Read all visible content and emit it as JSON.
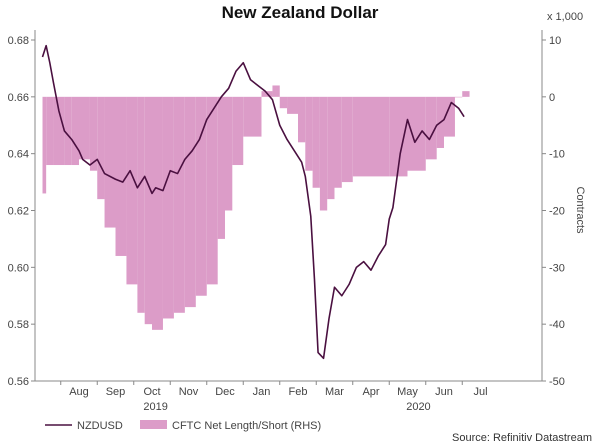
{
  "chart_data": {
    "type": "line",
    "title": "New Zealand Dollar",
    "source": "Source: Refinitiv Datastream",
    "months": [
      "Aug",
      "Sep",
      "Oct",
      "Nov",
      "Dec",
      "Jan",
      "Feb",
      "Mar",
      "Apr",
      "May",
      "Jun",
      "Jul"
    ],
    "years": [
      "2019",
      "2020"
    ],
    "left_axis": {
      "ylim": [
        0.56,
        0.68
      ],
      "ticks": [
        "0.68",
        "0.66",
        "0.64",
        "0.62",
        "0.60",
        "0.58",
        "0.56"
      ]
    },
    "right_axis": {
      "label": "Contracts",
      "multiplier": "x 1,000",
      "ylim": [
        -50,
        10
      ],
      "ticks": [
        "10",
        "0",
        "-10",
        "-20",
        "-30",
        "-40",
        "-50"
      ]
    },
    "series": [
      {
        "name": "NZDUSD",
        "type": "line",
        "color": "#4a1040",
        "x": [
          0,
          0.1,
          0.2,
          0.3,
          0.45,
          0.6,
          0.8,
          1,
          1.1,
          1.3,
          1.5,
          1.7,
          2,
          2.2,
          2.4,
          2.6,
          2.8,
          3,
          3.1,
          3.3,
          3.5,
          3.7,
          3.9,
          4.1,
          4.3,
          4.5,
          4.7,
          4.9,
          5.1,
          5.3,
          5.5,
          5.7,
          5.9,
          6.1,
          6.3,
          6.5,
          6.7,
          6.9,
          7.1,
          7.2,
          7.35,
          7.45,
          7.55,
          7.7,
          7.85,
          8,
          8.2,
          8.4,
          8.6,
          8.8,
          9,
          9.2,
          9.4,
          9.5,
          9.6,
          9.8,
          10,
          10.2,
          10.4,
          10.6,
          10.8,
          11,
          11.2,
          11.4,
          11.55
        ],
        "values": [
          0.674,
          0.678,
          0.672,
          0.665,
          0.655,
          0.648,
          0.645,
          0.641,
          0.638,
          0.636,
          0.638,
          0.633,
          0.631,
          0.63,
          0.634,
          0.628,
          0.632,
          0.626,
          0.628,
          0.627,
          0.634,
          0.633,
          0.638,
          0.641,
          0.645,
          0.652,
          0.656,
          0.66,
          0.663,
          0.669,
          0.672,
          0.666,
          0.664,
          0.662,
          0.659,
          0.65,
          0.645,
          0.641,
          0.637,
          0.632,
          0.618,
          0.596,
          0.57,
          0.568,
          0.582,
          0.593,
          0.59,
          0.594,
          0.6,
          0.602,
          0.599,
          0.604,
          0.608,
          0.617,
          0.621,
          0.64,
          0.652,
          0.644,
          0.648,
          0.645,
          0.65,
          0.652,
          0.658,
          0.656,
          0.653
        ]
      },
      {
        "name": "CFTC Net Length/Short (RHS)",
        "type": "area",
        "color": "#dc9cc8",
        "x": [
          0,
          0.1,
          0.3,
          0.6,
          0.8,
          1,
          1.3,
          1.5,
          1.7,
          2,
          2.3,
          2.6,
          2.8,
          3,
          3.3,
          3.6,
          3.9,
          4.2,
          4.5,
          4.8,
          5,
          5.2,
          5.5,
          6,
          6.3,
          6.5,
          6.7,
          7,
          7.2,
          7.4,
          7.6,
          7.8,
          8,
          8.2,
          8.5,
          9,
          9.5,
          10,
          10.5,
          10.8,
          11,
          11.3,
          11.5
        ],
        "values": [
          -17,
          -12,
          -12,
          -12,
          -12,
          -11,
          -13,
          -18,
          -23,
          -28,
          -33,
          -38,
          -40,
          -41,
          -39,
          -38,
          -37,
          -35,
          -33,
          -25,
          -20,
          -12,
          -7,
          1,
          2,
          -2,
          -3,
          -8,
          -13,
          -16,
          -20,
          -18,
          -16,
          -15,
          -14,
          -14,
          -14,
          -13,
          -11,
          -9,
          -7,
          0,
          1
        ]
      }
    ],
    "legend": [
      {
        "label": "NZDUSD",
        "style": "line"
      },
      {
        "label": "CFTC Net Length/Short (RHS)",
        "style": "area"
      }
    ]
  }
}
